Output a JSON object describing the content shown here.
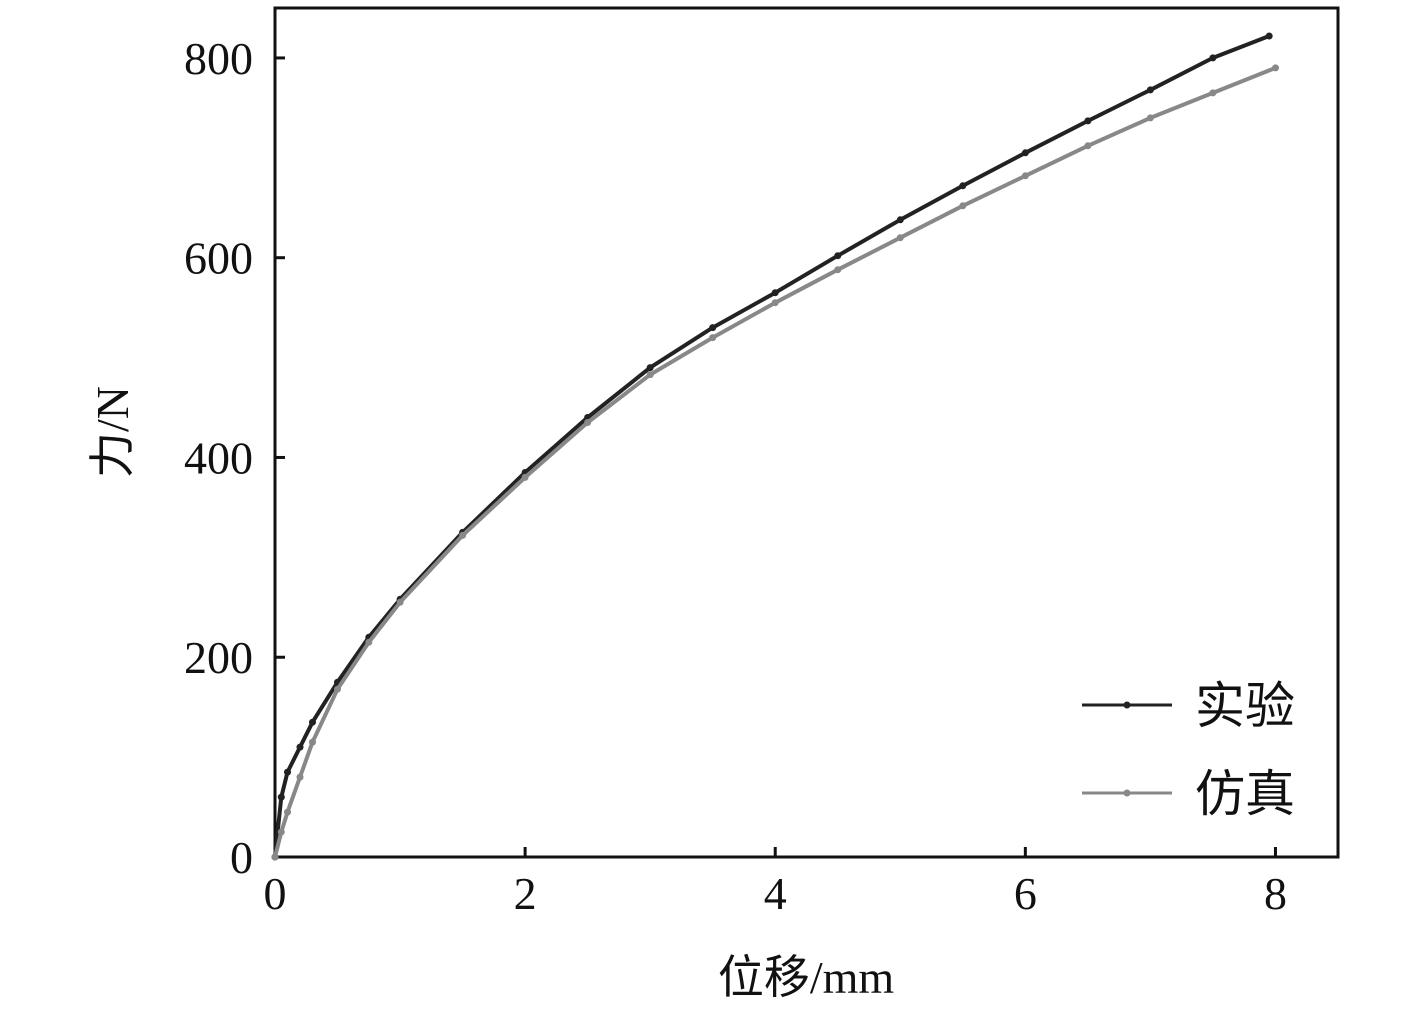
{
  "chart_data": {
    "type": "line",
    "xlabel": "位移/mm",
    "ylabel": "力/N",
    "xlim": [
      0,
      8.5
    ],
    "ylim": [
      0,
      850
    ],
    "xticks": [
      0,
      2,
      4,
      6,
      8
    ],
    "yticks": [
      0,
      200,
      400,
      600,
      800
    ],
    "xtick_labels": [
      "0",
      "2",
      "4",
      "6",
      "8"
    ],
    "ytick_labels": [
      "0",
      "200",
      "400",
      "600",
      "800"
    ],
    "grid": false,
    "legend_position": "bottom-right",
    "series": [
      {
        "name": "实验",
        "color": "#222222",
        "x": [
          0,
          0.05,
          0.1,
          0.2,
          0.3,
          0.5,
          0.75,
          1.0,
          1.5,
          2.0,
          2.5,
          3.0,
          3.5,
          4.0,
          4.5,
          5.0,
          5.5,
          6.0,
          6.5,
          7.0,
          7.5,
          7.95
        ],
        "y": [
          0,
          60,
          85,
          110,
          135,
          175,
          220,
          258,
          325,
          385,
          440,
          490,
          530,
          565,
          602,
          638,
          672,
          705,
          737,
          768,
          800,
          822
        ]
      },
      {
        "name": "仿真",
        "color": "#888888",
        "x": [
          0,
          0.05,
          0.1,
          0.2,
          0.3,
          0.5,
          0.75,
          1.0,
          1.5,
          2.0,
          2.5,
          3.0,
          3.5,
          4.0,
          4.5,
          5.0,
          5.5,
          6.0,
          6.5,
          7.0,
          7.5,
          8.0
        ],
        "y": [
          0,
          25,
          45,
          80,
          115,
          168,
          215,
          255,
          322,
          380,
          435,
          483,
          520,
          555,
          588,
          620,
          652,
          682,
          712,
          740,
          765,
          790
        ]
      }
    ]
  }
}
